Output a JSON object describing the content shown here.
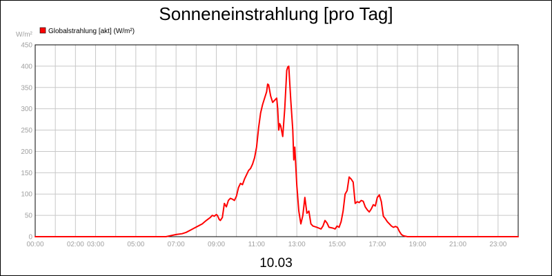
{
  "chart_data": {
    "type": "line",
    "title": "Sonneneinstrahlung [pro Tag]",
    "date_label": "10.03",
    "ylabel": "W/m²",
    "ylim": [
      0,
      450
    ],
    "xlim": [
      0,
      24
    ],
    "y_ticks": [
      0,
      50,
      100,
      150,
      200,
      250,
      300,
      350,
      400,
      450
    ],
    "x_ticks": [
      {
        "x": 0,
        "label": "00:00"
      },
      {
        "x": 2.0,
        "label": "02:00"
      },
      {
        "x": 3.0,
        "label": "03:00"
      },
      {
        "x": 5.0,
        "label": "05:00"
      },
      {
        "x": 7.0,
        "label": "07:00"
      },
      {
        "x": 9.0,
        "label": "09:00"
      },
      {
        "x": 11.0,
        "label": "11:00"
      },
      {
        "x": 13.0,
        "label": "13:00"
      },
      {
        "x": 15.0,
        "label": "15:00"
      },
      {
        "x": 17.0,
        "label": "17:00"
      },
      {
        "x": 19.0,
        "label": "19:00"
      },
      {
        "x": 21.0,
        "label": "21:00"
      },
      {
        "x": 23.0,
        "label": "23:00"
      }
    ],
    "grid": true,
    "legend_position": "top-left",
    "series": [
      {
        "name": "Globalstrahlung [akt] (W/m²)",
        "color": "#ff0000",
        "x": [
          0,
          6.5,
          6.8,
          7.0,
          7.3,
          7.5,
          7.7,
          7.9,
          8.1,
          8.3,
          8.5,
          8.7,
          8.8,
          8.9,
          9.0,
          9.05,
          9.15,
          9.2,
          9.3,
          9.4,
          9.5,
          9.6,
          9.7,
          9.8,
          9.9,
          10.0,
          10.1,
          10.2,
          10.3,
          10.4,
          10.5,
          10.6,
          10.7,
          10.8,
          10.9,
          11.0,
          11.1,
          11.2,
          11.3,
          11.4,
          11.5,
          11.55,
          11.6,
          11.7,
          11.8,
          11.9,
          12.0,
          12.05,
          12.1,
          12.15,
          12.2,
          12.3,
          12.4,
          12.5,
          12.55,
          12.6,
          12.7,
          12.8,
          12.85,
          12.9,
          13.0,
          13.1,
          13.2,
          13.3,
          13.4,
          13.5,
          13.6,
          13.7,
          13.8,
          14.0,
          14.2,
          14.3,
          14.4,
          14.5,
          14.6,
          14.8,
          14.9,
          15.0,
          15.1,
          15.2,
          15.3,
          15.4,
          15.5,
          15.6,
          15.7,
          15.8,
          15.9,
          16.0,
          16.1,
          16.2,
          16.3,
          16.4,
          16.5,
          16.6,
          16.7,
          16.8,
          16.9,
          17.0,
          17.1,
          17.2,
          17.3,
          17.4,
          17.5,
          17.6,
          17.7,
          17.8,
          17.9,
          18.0,
          18.1,
          18.2,
          18.3,
          18.5,
          24
        ],
        "y": [
          0,
          0,
          3,
          5,
          7,
          10,
          15,
          20,
          25,
          30,
          38,
          45,
          50,
          48,
          52,
          50,
          40,
          38,
          45,
          78,
          70,
          85,
          90,
          88,
          85,
          95,
          115,
          125,
          122,
          135,
          145,
          155,
          160,
          170,
          185,
          210,
          255,
          290,
          310,
          325,
          340,
          358,
          356,
          330,
          315,
          320,
          325,
          300,
          250,
          265,
          260,
          235,
          300,
          390,
          398,
          400,
          320,
          250,
          180,
          210,
          120,
          60,
          30,
          50,
          92,
          55,
          60,
          30,
          25,
          22,
          18,
          25,
          38,
          32,
          22,
          20,
          18,
          25,
          22,
          35,
          60,
          100,
          108,
          140,
          135,
          128,
          78,
          82,
          80,
          85,
          83,
          70,
          63,
          58,
          65,
          75,
          72,
          92,
          98,
          82,
          48,
          42,
          35,
          30,
          25,
          22,
          24,
          22,
          12,
          5,
          2,
          0,
          0
        ]
      }
    ]
  }
}
